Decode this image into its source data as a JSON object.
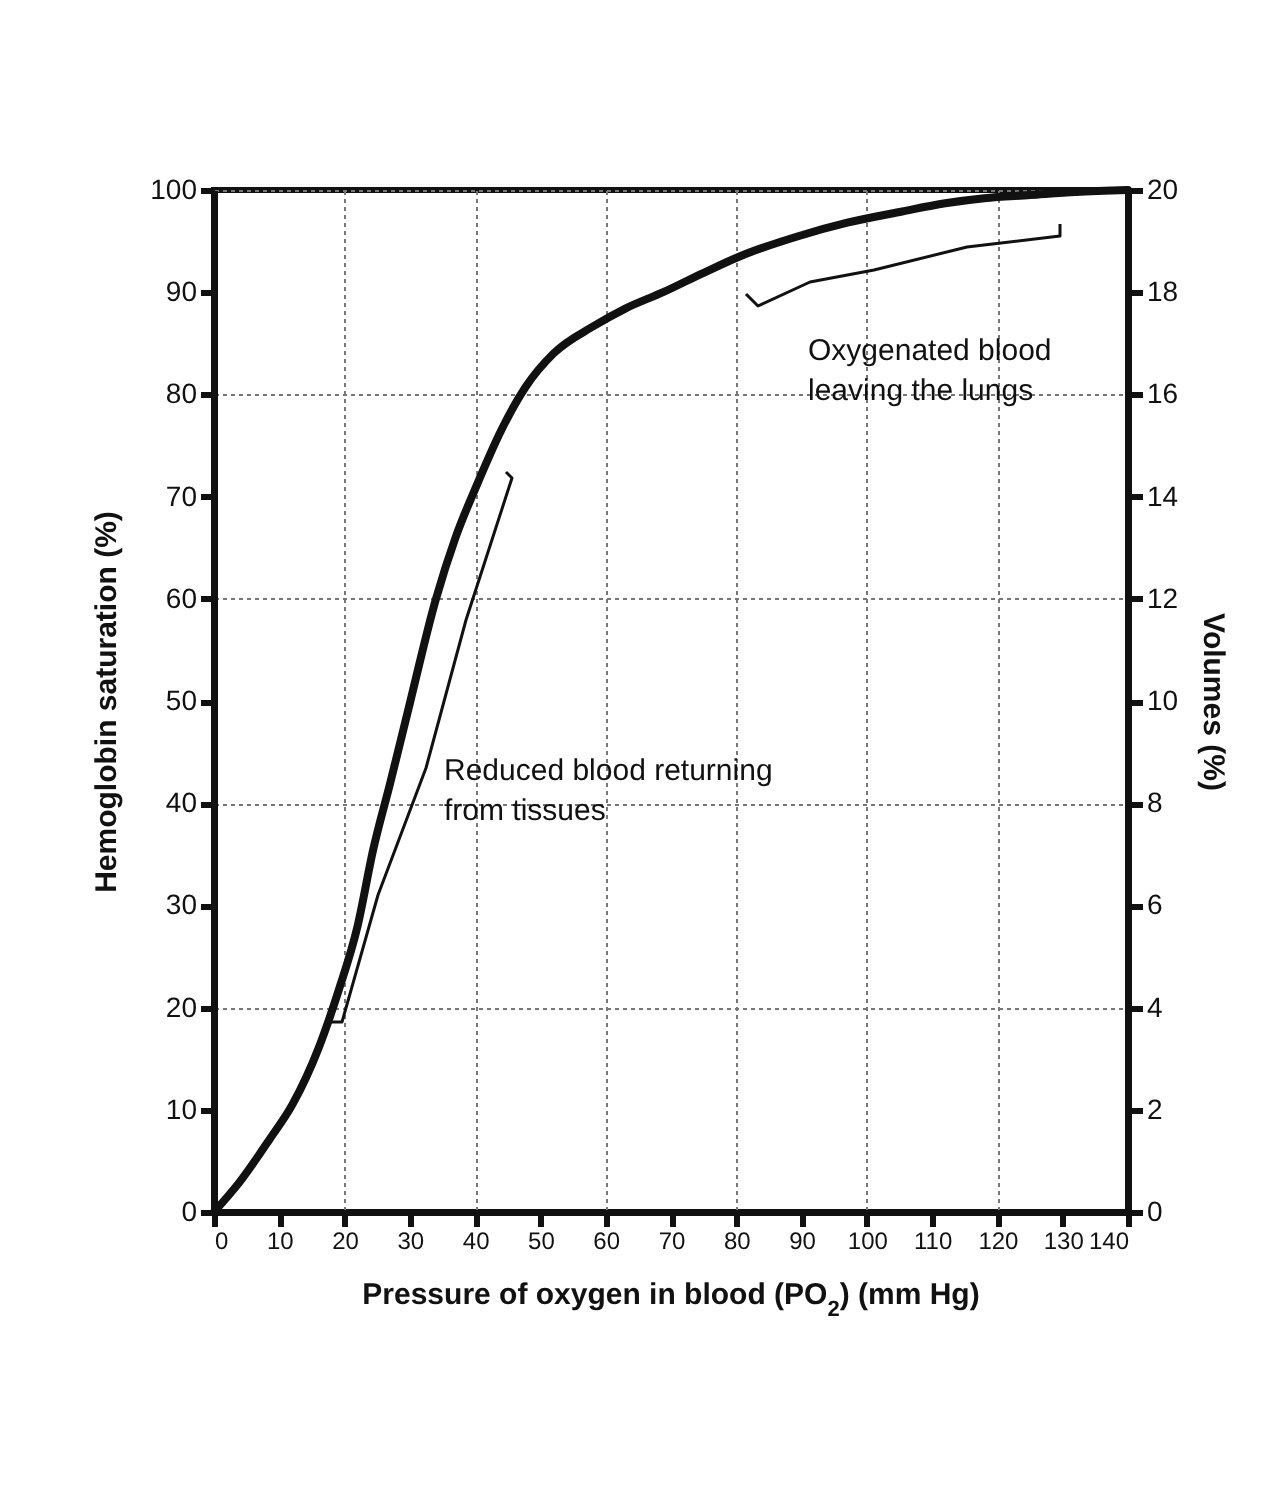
{
  "chart_data": {
    "type": "line",
    "xlabel": "Pressure of oxygen in blood (PO$_{2}$) (mm Hg)",
    "ylabel": "Hemoglobin saturation (%)",
    "y2label": "Volumes (%)",
    "x": [
      0,
      4,
      8.5,
      12,
      16,
      19,
      22,
      24.4,
      27,
      29.7,
      34,
      37,
      40.3,
      44,
      47.7,
      52,
      58.2,
      63,
      68.8,
      75,
      80.5,
      89.6,
      97,
      105.4,
      112,
      118,
      125,
      132,
      140
    ],
    "series": [
      {
        "color": "#111111",
        "values": [
          0,
          3,
          7.1,
          10.5,
          16,
          21.5,
          28,
          35.5,
          42,
          49,
          60,
          66,
          71.2,
          76.5,
          80.7,
          84,
          86.7,
          88.4,
          90,
          91.9,
          93.5,
          95.5,
          96.8,
          97.9,
          98.7,
          99.2,
          99.5,
          99.8,
          100
        ]
      }
    ],
    "xlim": [
      0,
      140
    ],
    "xticks": [
      0,
      10,
      20,
      30,
      40,
      50,
      60,
      70,
      80,
      90,
      100,
      110,
      120,
      130,
      140
    ],
    "ylim": [
      0,
      100
    ],
    "yticks": [
      0,
      10,
      20,
      30,
      40,
      50,
      60,
      70,
      80,
      90,
      100
    ],
    "y2lim": [
      0,
      20
    ],
    "y2ticks": [
      0,
      2,
      4,
      6,
      8,
      10,
      12,
      14,
      16,
      18,
      20
    ],
    "grid": true,
    "marker": "none",
    "line_style": "solid",
    "annotations": [
      "Reduced blood returning\nfrom tissues",
      "Oxygenated blood\nleaving the lungs"
    ]
  }
}
